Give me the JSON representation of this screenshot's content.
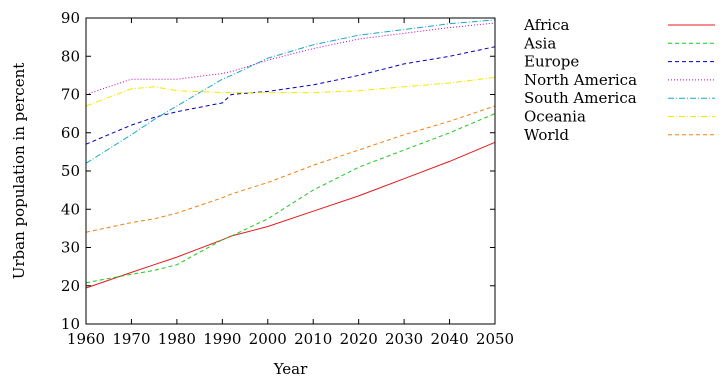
{
  "chart_data": {
    "type": "line",
    "title": "",
    "xlabel": "Year",
    "ylabel": "Urban population in percent",
    "xlim": [
      1960,
      2050
    ],
    "ylim": [
      10,
      90
    ],
    "xticks": [
      1960,
      1970,
      1980,
      1990,
      2000,
      2010,
      2020,
      2030,
      2040,
      2050
    ],
    "yticks": [
      10,
      20,
      30,
      40,
      50,
      60,
      70,
      80,
      90
    ],
    "grid": false,
    "legend_position": "right",
    "x": [
      1960,
      1970,
      1975,
      1980,
      1990,
      1992,
      2000,
      2010,
      2020,
      2030,
      2040,
      2050
    ],
    "series": [
      {
        "name": "Africa",
        "color": "#e41a1c",
        "dash": "solid",
        "values": [
          19.4,
          23.5,
          25.5,
          27.5,
          32.0,
          33.0,
          35.5,
          39.5,
          43.5,
          48.0,
          52.5,
          57.5
        ]
      },
      {
        "name": "Asia",
        "color": "#1ec81e",
        "dash": "dashed",
        "values": [
          20.8,
          23.0,
          24.0,
          25.5,
          32.0,
          33.0,
          37.5,
          45.0,
          51.0,
          55.5,
          60.0,
          65.0
        ]
      },
      {
        "name": "Europe",
        "color": "#0000bb",
        "dash": "dashed",
        "values": [
          57.0,
          62.0,
          64.0,
          65.5,
          67.8,
          70.0,
          70.8,
          72.5,
          75.0,
          78.0,
          80.0,
          82.5
        ]
      },
      {
        "name": "North America",
        "color": "#c200c2",
        "dash": "dotted",
        "values": [
          70.0,
          74.0,
          74.0,
          74.0,
          75.5,
          76.0,
          79.0,
          82.0,
          84.5,
          86.0,
          87.5,
          88.7
        ]
      },
      {
        "name": "South America",
        "color": "#1aa7c4",
        "dash": "dashdot",
        "values": [
          52.0,
          59.5,
          63.5,
          67.0,
          74.0,
          75.0,
          79.5,
          83.0,
          85.5,
          87.0,
          88.5,
          89.5
        ]
      },
      {
        "name": "Oceania",
        "color": "#f2ea00",
        "dash": "dashdot",
        "values": [
          67.0,
          71.5,
          72.0,
          71.0,
          70.5,
          70.5,
          70.5,
          70.5,
          71.0,
          72.0,
          73.0,
          74.5
        ]
      },
      {
        "name": "World",
        "color": "#f08010",
        "dash": "dashed",
        "values": [
          34.0,
          36.5,
          37.5,
          39.0,
          43.0,
          44.0,
          47.0,
          51.5,
          55.5,
          59.5,
          63.0,
          67.0
        ]
      }
    ]
  }
}
